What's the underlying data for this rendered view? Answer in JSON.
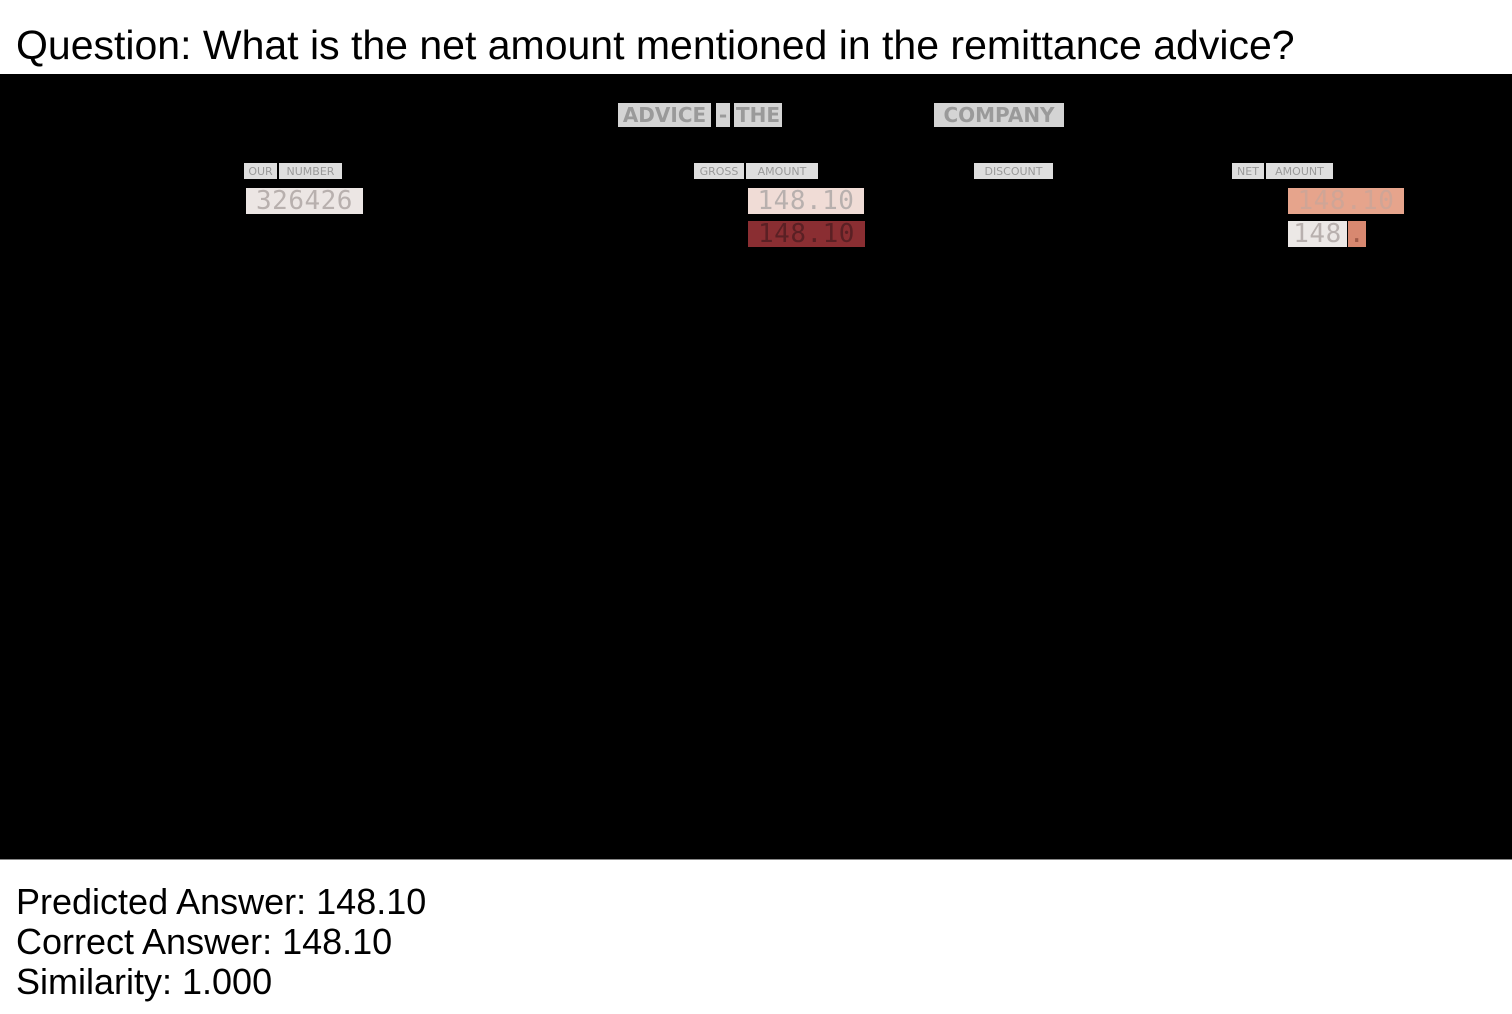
{
  "question": "Question: What is the net amount mentioned in the remittance advice?",
  "document": {
    "title_words": [
      "ADVICE",
      "-",
      "THE",
      "COMPANY"
    ],
    "headers": {
      "our_number": [
        "OUR",
        "NUMBER"
      ],
      "gross_amount": [
        "GROSS",
        "AMOUNT"
      ],
      "discount": "DISCOUNT",
      "net_amount": [
        "NET",
        "AMOUNT"
      ]
    },
    "values": {
      "our_number": "326426",
      "gross_amount_1": "148.10",
      "gross_amount_2": "148.10",
      "net_amount_1": "148.10",
      "net_amount_2_main": "148",
      "net_amount_2_tail": "."
    },
    "highlight_colors": {
      "our_number": "#ece6e4",
      "gross_1": "#f0dcd6",
      "gross_2": "#8a2e32",
      "net_1": "#e6a48c",
      "net_2_main": "#ece8e6",
      "net_2_tail": "#d88870"
    }
  },
  "results": {
    "predicted": "Predicted Answer: 148.10",
    "correct": "Correct Answer: 148.10",
    "similarity": "Similarity: 1.000"
  }
}
